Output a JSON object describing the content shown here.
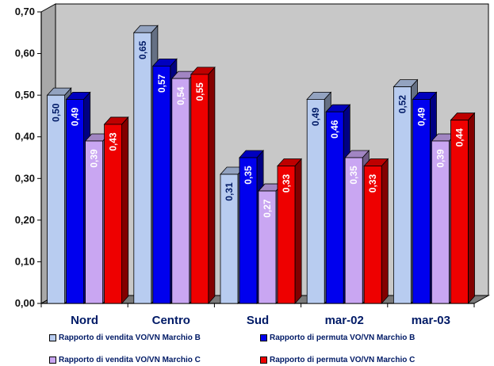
{
  "chart_data": {
    "type": "bar",
    "categories": [
      "Nord",
      "Centro",
      "Sud",
      "mar-02",
      "mar-03"
    ],
    "series": [
      {
        "name": "Rapporto di vendita VO/VN Marchio B",
        "values": [
          0.5,
          0.65,
          0.31,
          0.49,
          0.52
        ],
        "color": "#b8ccf0"
      },
      {
        "name": "Rapporto di permuta VO/VN Marchio B",
        "values": [
          0.49,
          0.57,
          0.35,
          0.46,
          0.49
        ],
        "color": "#0000ee"
      },
      {
        "name": "Rapporto di vendita VO/VN Marchio C",
        "values": [
          0.39,
          0.54,
          0.27,
          0.35,
          0.39
        ],
        "color": "#c9a6f2"
      },
      {
        "name": "Rapporto di permuta VO/VN Marchio C",
        "values": [
          0.43,
          0.55,
          0.33,
          0.33,
          0.44
        ],
        "color": "#ee0000"
      }
    ],
    "data_labels": [
      [
        "0,50",
        "0,65",
        "0,31",
        "0,49",
        "0,52"
      ],
      [
        "0,49",
        "0,57",
        "0,35",
        "0,46",
        "0,49"
      ],
      [
        "0,39",
        "0,54",
        "0,27",
        "0,35",
        "0,39"
      ],
      [
        "0,43",
        "0,55",
        "0,33",
        "0,33",
        "0,44"
      ]
    ],
    "label_colors": [
      "#001a66",
      "#ffffff",
      "#ffffff",
      "#ffffff"
    ],
    "y_ticks": [
      "0,00",
      "0,10",
      "0,20",
      "0,30",
      "0,40",
      "0,50",
      "0,60",
      "0,70"
    ],
    "ylim": [
      0,
      0.7
    ],
    "grid": false,
    "legend_position": "bottom",
    "wall_color": "#c8c8c8",
    "floor_color": "#7a7a7a"
  }
}
